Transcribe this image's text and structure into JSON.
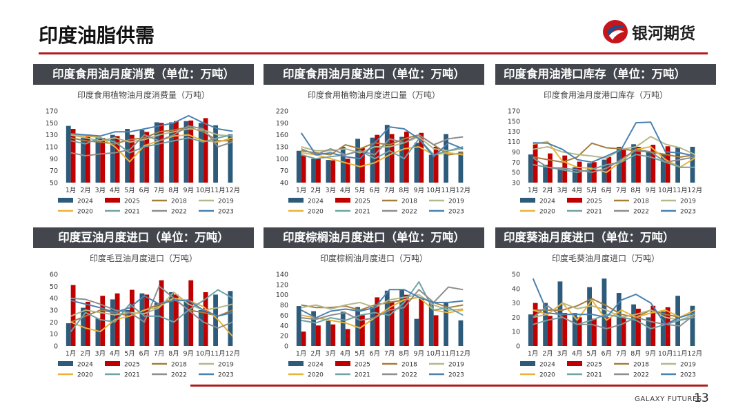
{
  "page": {
    "title": "印度油脂供需",
    "logo_text": "银河期货",
    "footer_brand": "GALAXY FUTURES",
    "page_number": "13"
  },
  "colors": {
    "2024": "#2e5b7a",
    "2025": "#c00000",
    "2018": "#a57e3c",
    "2019": "#b5b88a",
    "2020": "#e9b33a",
    "2021": "#6fa3a6",
    "2022": "#8e8e8e",
    "2023": "#4a81b0",
    "accent_rule": "#b01c1c",
    "header_bg": "#43474d"
  },
  "legend_years": [
    "2024",
    "2025",
    "2018",
    "2019",
    "2020",
    "2021",
    "2022",
    "2023"
  ],
  "chart_data": [
    {
      "type": "bar",
      "panel_header": "印度食用油月度消费（单位：万吨）",
      "title": "印度食用植物油月度消费量（万吨）",
      "categories": [
        "1月",
        "2月",
        "3月",
        "4月",
        "5月",
        "6月",
        "7月",
        "8月",
        "9月",
        "10月",
        "11月",
        "12月"
      ],
      "ylim": [
        50,
        170
      ],
      "yticks": [
        50,
        70,
        90,
        110,
        130,
        150,
        170
      ],
      "bar_series": [
        {
          "name": "2024",
          "values": [
            145,
            125,
            126,
            130,
            140,
            138,
            151,
            151,
            153,
            150,
            146,
            131
          ]
        },
        {
          "name": "2025",
          "values": [
            140,
            127,
            125,
            128,
            130,
            135,
            150,
            153,
            154,
            158,
            null,
            null
          ]
        }
      ],
      "line_series": [
        {
          "name": "2018",
          "values": [
            125,
            120,
            118,
            115,
            122,
            125,
            135,
            138,
            143,
            135,
            120,
            120
          ]
        },
        {
          "name": "2019",
          "values": [
            130,
            125,
            120,
            125,
            118,
            122,
            130,
            135,
            140,
            138,
            130,
            128
          ]
        },
        {
          "name": "2020",
          "values": [
            130,
            128,
            126,
            110,
            85,
            112,
            120,
            128,
            130,
            120,
            118,
            125
          ]
        },
        {
          "name": "2021",
          "values": [
            120,
            115,
            125,
            118,
            100,
            110,
            115,
            120,
            125,
            118,
            125,
            130
          ]
        },
        {
          "name": "2022",
          "values": [
            100,
            95,
            98,
            100,
            105,
            130,
            120,
            130,
            145,
            140,
            110,
            118
          ]
        },
        {
          "name": "2023",
          "values": [
            132,
            130,
            128,
            135,
            135,
            140,
            145,
            150,
            162,
            150,
            140,
            136
          ]
        }
      ]
    },
    {
      "type": "bar",
      "panel_header": "印度食用油月度进口（单位：万吨）",
      "title": "印度食用植物油月度进口量（万吨）",
      "categories": [
        "1月",
        "2月",
        "3月",
        "4月",
        "5月",
        "6月",
        "7月",
        "8月",
        "9月",
        "10月",
        "11月",
        "12月"
      ],
      "ylim": [
        40,
        220
      ],
      "yticks": [
        40,
        70,
        100,
        130,
        160,
        190,
        220
      ],
      "bar_series": [
        {
          "name": "2024",
          "values": [
            120,
            100,
            97,
            130,
            150,
            153,
            185,
            155,
            140,
            110,
            162,
            118
          ]
        },
        {
          "name": "2025",
          "values": [
            108,
            100,
            96,
            100,
            127,
            160,
            162,
            168,
            165,
            130,
            null,
            null
          ]
        }
      ],
      "line_series": [
        {
          "name": "2018",
          "values": [
            120,
            115,
            110,
            135,
            125,
            140,
            135,
            150,
            160,
            135,
            110,
            115
          ]
        },
        {
          "name": "2019",
          "values": [
            130,
            120,
            120,
            125,
            115,
            130,
            130,
            140,
            155,
            125,
            120,
            125
          ]
        },
        {
          "name": "2020",
          "values": [
            115,
            110,
            100,
            90,
            80,
            90,
            110,
            125,
            130,
            110,
            115,
            110
          ]
        },
        {
          "name": "2021",
          "values": [
            110,
            100,
            105,
            110,
            120,
            100,
            120,
            100,
            150,
            110,
            120,
            130
          ]
        },
        {
          "name": "2022",
          "values": [
            125,
            110,
            125,
            110,
            120,
            110,
            150,
            140,
            160,
            135,
            150,
            155
          ]
        },
        {
          "name": "2023",
          "values": [
            165,
            110,
            115,
            105,
            100,
            140,
            180,
            175,
            150,
            105,
            140,
            125
          ]
        }
      ]
    },
    {
      "type": "bar",
      "panel_header": "印度食用油港口库存（单位：万吨）",
      "title": "印度食用油月度港口库存（万吨）",
      "categories": [
        "1月",
        "2月",
        "3月",
        "4月",
        "5月",
        "6月",
        "7月",
        "8月",
        "9月",
        "10月",
        "11月",
        "12月"
      ],
      "ylim": [
        30,
        170
      ],
      "yticks": [
        30,
        50,
        70,
        90,
        110,
        130,
        150,
        170
      ],
      "bar_series": [
        {
          "name": "2024",
          "values": [
            85,
            65,
            60,
            60,
            68,
            75,
            100,
            105,
            90,
            85,
            100,
            100
          ]
        },
        {
          "name": "2025",
          "values": [
            107,
            87,
            83,
            71,
            70,
            80,
            96,
            100,
            104,
            101,
            null,
            null
          ]
        }
      ],
      "line_series": [
        {
          "name": "2018",
          "values": [
            80,
            75,
            70,
            80,
            107,
            98,
            96,
            92,
            90,
            85,
            80,
            84
          ]
        },
        {
          "name": "2019",
          "values": [
            95,
            100,
            90,
            85,
            82,
            78,
            95,
            100,
            120,
            105,
            98,
            85
          ]
        },
        {
          "name": "2020",
          "values": [
            105,
            110,
            72,
            60,
            58,
            50,
            72,
            95,
            100,
            75,
            60,
            78
          ]
        },
        {
          "name": "2021",
          "values": [
            65,
            60,
            55,
            50,
            56,
            65,
            70,
            85,
            80,
            70,
            60,
            60
          ]
        },
        {
          "name": "2022",
          "values": [
            78,
            60,
            58,
            55,
            50,
            58,
            75,
            95,
            90,
            70,
            75,
            80
          ]
        },
        {
          "name": "2023",
          "values": [
            108,
            107,
            95,
            75,
            70,
            82,
            95,
            147,
            148,
            90,
            88,
            82
          ]
        }
      ]
    },
    {
      "type": "bar",
      "panel_header": "印度豆油月度进口（单位：万吨）",
      "title": "印度毛豆油月度进口（万吨）",
      "categories": [
        "1月",
        "2月",
        "3月",
        "4月",
        "5月",
        "6月",
        "7月",
        "8月",
        "9月",
        "10月",
        "11月",
        "12月"
      ],
      "ylim": [
        0,
        60
      ],
      "yticks": [
        0,
        10,
        20,
        30,
        40,
        50,
        60
      ],
      "bar_series": [
        {
          "name": "2024",
          "values": [
            19,
            32,
            23,
            39,
            30,
            44,
            36,
            45,
            39,
            30,
            43,
            46
          ]
        },
        {
          "name": "2025",
          "values": [
            51,
            37,
            42,
            44,
            47,
            43,
            55,
            43,
            55,
            45,
            null,
            null
          ]
        }
      ],
      "line_series": [
        {
          "name": "2018",
          "values": [
            20,
            25,
            30,
            28,
            25,
            30,
            35,
            40,
            30,
            28,
            25,
            30
          ]
        },
        {
          "name": "2019",
          "values": [
            25,
            30,
            28,
            26,
            28,
            27,
            32,
            45,
            35,
            30,
            32,
            35
          ]
        },
        {
          "name": "2020",
          "values": [
            20,
            15,
            12,
            22,
            25,
            30,
            33,
            40,
            38,
            33,
            22,
            8
          ]
        },
        {
          "name": "2021",
          "values": [
            12,
            28,
            22,
            20,
            35,
            25,
            25,
            20,
            30,
            38,
            47,
            40
          ]
        },
        {
          "name": "2022",
          "values": [
            40,
            39,
            35,
            30,
            28,
            20,
            50,
            40,
            30,
            20,
            15,
            20
          ]
        },
        {
          "name": "2023",
          "values": [
            38,
            35,
            32,
            28,
            32,
            42,
            35,
            38,
            38,
            30,
            25,
            28
          ]
        }
      ]
    },
    {
      "type": "bar",
      "panel_header": "印度棕榈油月度进口（单位：万吨）",
      "title": "印度棕榈油月度进口（万吨）",
      "categories": [
        "1月",
        "2月",
        "3月",
        "4月",
        "5月",
        "6月",
        "7月",
        "8月",
        "9月",
        "10月",
        "11月",
        "12月"
      ],
      "ylim": [
        0,
        140
      ],
      "yticks": [
        0,
        20,
        40,
        60,
        80,
        100,
        120,
        140
      ],
      "bar_series": [
        {
          "name": "2024",
          "values": [
            78,
            68,
            49,
            67,
            76,
            79,
            108,
            110,
            53,
            85,
            85,
            50
          ]
        },
        {
          "name": "2025",
          "values": [
            28,
            40,
            42,
            33,
            60,
            95,
            87,
            100,
            92,
            60,
            null,
            null
          ]
        }
      ],
      "line_series": [
        {
          "name": "2018",
          "values": [
            80,
            75,
            75,
            78,
            70,
            80,
            85,
            90,
            95,
            85,
            75,
            80
          ]
        },
        {
          "name": "2019",
          "values": [
            75,
            80,
            72,
            80,
            85,
            75,
            90,
            95,
            100,
            80,
            70,
            72
          ]
        },
        {
          "name": "2020",
          "values": [
            60,
            55,
            50,
            45,
            35,
            55,
            75,
            90,
            95,
            70,
            65,
            70
          ]
        },
        {
          "name": "2021",
          "values": [
            50,
            45,
            55,
            50,
            60,
            65,
            60,
            85,
            125,
            70,
            75,
            60
          ]
        },
        {
          "name": "2022",
          "values": [
            55,
            52,
            60,
            65,
            50,
            55,
            70,
            75,
            110,
            85,
            115,
            110
          ]
        },
        {
          "name": "2023",
          "values": [
            70,
            55,
            68,
            72,
            68,
            75,
            110,
            110,
            95,
            85,
            85,
            88
          ]
        }
      ]
    },
    {
      "type": "bar",
      "panel_header": "印度葵油月度进口（单位：万吨）",
      "title": "印度毛葵油月度进口（万吨）",
      "categories": [
        "1月",
        "2月",
        "3月",
        "4月",
        "5月",
        "6月",
        "7月",
        "8月",
        "9月",
        "10月",
        "11月",
        "12月"
      ],
      "ylim": [
        0,
        50
      ],
      "yticks": [
        0,
        10,
        20,
        30,
        40,
        50
      ],
      "bar_series": [
        {
          "name": "2024",
          "values": [
            22,
            30,
            45,
            23,
            41,
            47,
            37,
            29,
            20,
            24,
            35,
            28
          ]
        },
        {
          "name": "2025",
          "values": [
            30,
            21,
            23,
            20,
            19,
            20,
            20,
            26,
            28,
            27,
            null,
            null
          ]
        }
      ],
      "line_series": [
        {
          "name": "2018",
          "values": [
            25,
            25,
            25,
            28,
            33,
            28,
            22,
            20,
            25,
            22,
            20,
            25
          ]
        },
        {
          "name": "2019",
          "values": [
            20,
            22,
            30,
            26,
            28,
            25,
            20,
            22,
            25,
            20,
            18,
            22
          ]
        },
        {
          "name": "2020",
          "values": [
            25,
            22,
            30,
            18,
            32,
            18,
            25,
            20,
            23,
            25,
            20,
            25
          ]
        },
        {
          "name": "2021",
          "values": [
            15,
            18,
            20,
            15,
            18,
            22,
            20,
            18,
            12,
            15,
            18,
            20
          ]
        },
        {
          "name": "2022",
          "values": [
            20,
            28,
            20,
            15,
            15,
            12,
            15,
            20,
            17,
            15,
            14,
            22
          ]
        },
        {
          "name": "2023",
          "values": [
            47,
            23,
            22,
            22,
            22,
            20,
            32,
            36,
            30,
            15,
            20,
            23
          ]
        }
      ]
    }
  ]
}
